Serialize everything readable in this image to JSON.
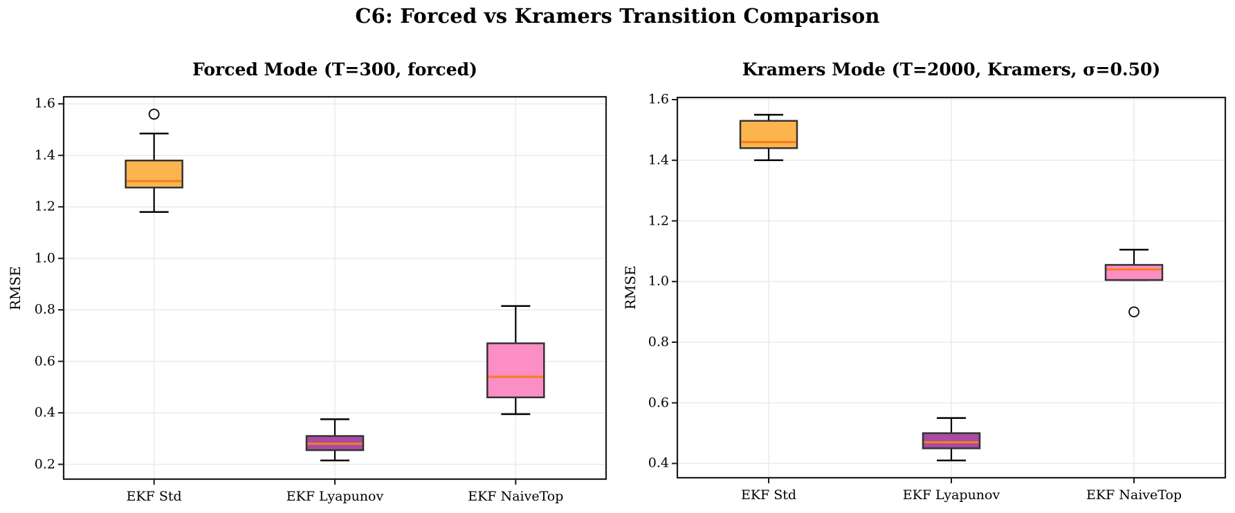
{
  "chart_data": {
    "type": "boxplot",
    "figure_title": "C6: Forced vs Kramers Transition Comparison",
    "ylabel": "RMSE",
    "categories": [
      "EKF Std",
      "EKF Lyapunov",
      "EKF NaiveTop"
    ],
    "box_colors": [
      "#FBB44E",
      "#A84BA4",
      "#FB8EC5"
    ],
    "style": {
      "median_color": "#F5801E",
      "box_edge_color": "#333333",
      "whisker_color": "#000000",
      "grid_color": "#EAEAEA",
      "spine_color": "#1A1A1A",
      "background": "#FFFFFF"
    },
    "legend": null,
    "grid": true,
    "subplots": [
      {
        "title": "Forced Mode (T=300, forced)",
        "ylim": [
          0.1425,
          1.6275
        ],
        "yticks": [
          0.2,
          0.4,
          0.6,
          0.8,
          1.0,
          1.2,
          1.4,
          1.6
        ],
        "ytick_labels": [
          "0.2",
          "0.4",
          "0.6",
          "0.8",
          "1.0",
          "1.2",
          "1.4",
          "1.6"
        ],
        "boxes": [
          {
            "category": "EKF Std",
            "whisker_low": 1.18,
            "q1": 1.275,
            "median": 1.3,
            "q3": 1.38,
            "whisker_high": 1.485,
            "outliers": [
              1.56
            ]
          },
          {
            "category": "EKF Lyapunov",
            "whisker_low": 0.215,
            "q1": 0.255,
            "median": 0.28,
            "q3": 0.31,
            "whisker_high": 0.375,
            "outliers": []
          },
          {
            "category": "EKF NaiveTop",
            "whisker_low": 0.395,
            "q1": 0.46,
            "median": 0.54,
            "q3": 0.67,
            "whisker_high": 0.815,
            "outliers": []
          }
        ]
      },
      {
        "title": "Kramers Mode (T=2000, Kramers, σ=0.50)",
        "ylim": [
          0.353,
          1.607
        ],
        "yticks": [
          0.4,
          0.6,
          0.8,
          1.0,
          1.2,
          1.4,
          1.6
        ],
        "ytick_labels": [
          "0.4",
          "0.6",
          "0.8",
          "1.0",
          "1.2",
          "1.4",
          "1.6"
        ],
        "boxes": [
          {
            "category": "EKF Std",
            "whisker_low": 1.4,
            "q1": 1.44,
            "median": 1.46,
            "q3": 1.53,
            "whisker_high": 1.55,
            "outliers": []
          },
          {
            "category": "EKF Lyapunov",
            "whisker_low": 0.41,
            "q1": 0.45,
            "median": 0.47,
            "q3": 0.5,
            "whisker_high": 0.55,
            "outliers": []
          },
          {
            "category": "EKF NaiveTop",
            "whisker_low": 1.005,
            "q1": 1.005,
            "median": 1.04,
            "q3": 1.055,
            "whisker_high": 1.105,
            "outliers": [
              0.9
            ]
          }
        ]
      }
    ]
  }
}
